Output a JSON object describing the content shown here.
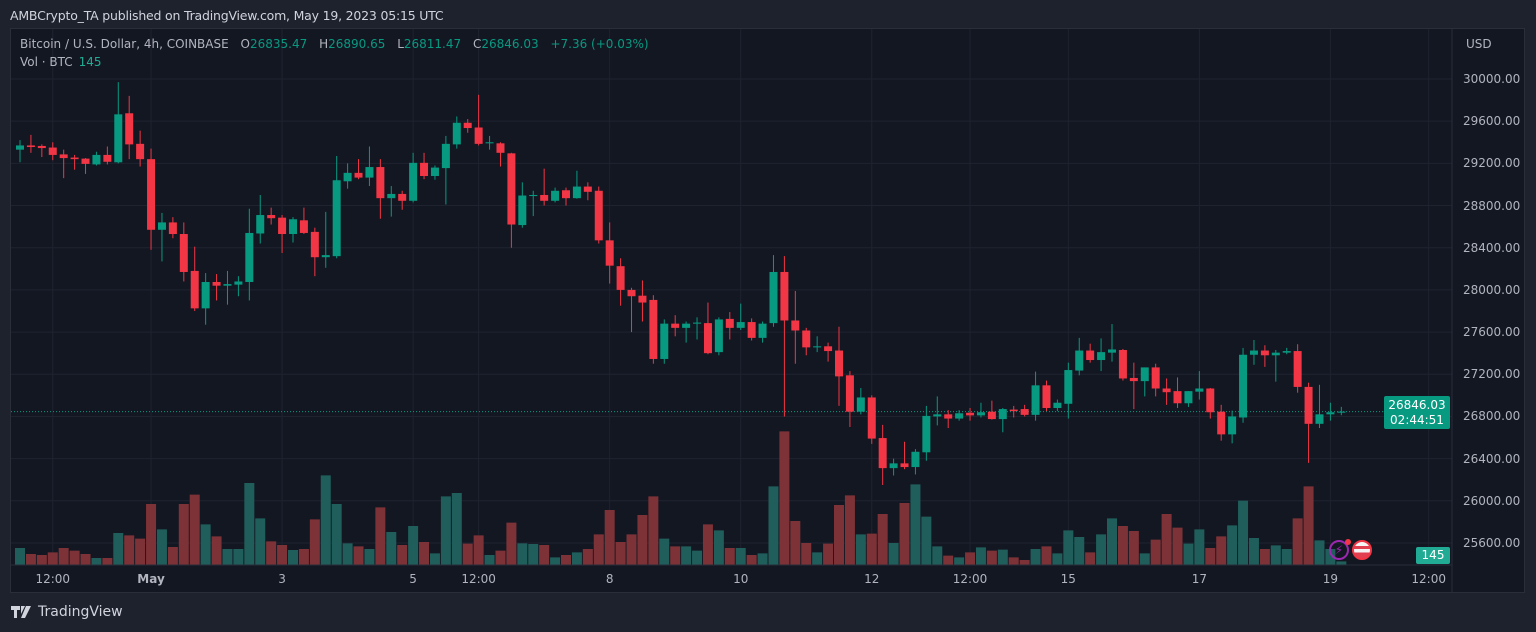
{
  "publisher_line": "AMBCrypto_TA published on TradingView.com, May 19, 2023 05:15 UTC",
  "legend": {
    "symbol": "Bitcoin / U.S. Dollar, 4h, COINBASE",
    "open_label": "O",
    "open": "26835.47",
    "high_label": "H",
    "high": "26890.65",
    "low_label": "L",
    "low": "26811.47",
    "close_label": "C",
    "close": "26846.03",
    "change": "+7.36 (+0.03%)",
    "vol_label": "Vol · BTC",
    "vol_value": "145"
  },
  "price_axis": {
    "currency": "USD",
    "current_price": "26846.03",
    "countdown": "02:44:51",
    "current_volume": "145"
  },
  "footer": {
    "brand": "TradingView"
  },
  "colors": {
    "up": "#089981",
    "down": "#f23645",
    "vol_up": "#1f5e5b",
    "vol_down": "#7c3236",
    "grid": "#1f2330",
    "background": "#131722"
  },
  "chart_data": {
    "type": "candlestick",
    "title": "Bitcoin / U.S. Dollar, 4h, COINBASE",
    "ylabel": "USD",
    "ylim": [
      25450,
      30250
    ],
    "yticks": [
      "30000.00",
      "29600.00",
      "29200.00",
      "28800.00",
      "28400.00",
      "28000.00",
      "27600.00",
      "27200.00",
      "26800.00",
      "26400.00",
      "26000.00",
      "25600.00"
    ],
    "xticks": [
      {
        "label": "12:00",
        "candle_index": 3
      },
      {
        "label": "May",
        "candle_index": 12,
        "bold": true
      },
      {
        "label": "3",
        "candle_index": 24
      },
      {
        "label": "5",
        "candle_index": 36
      },
      {
        "label": "12:00",
        "candle_index": 42
      },
      {
        "label": "8",
        "candle_index": 54
      },
      {
        "label": "10",
        "candle_index": 66
      },
      {
        "label": "12",
        "candle_index": 78
      },
      {
        "label": "12:00",
        "candle_index": 87
      },
      {
        "label": "15",
        "candle_index": 96
      },
      {
        "label": "17",
        "candle_index": 108
      },
      {
        "label": "19",
        "candle_index": 120
      },
      {
        "label": "12:00",
        "candle_index": 129
      }
    ],
    "candle_fields": [
      "open",
      "high",
      "low",
      "close",
      "volume_btc"
    ],
    "candles": [
      [
        29330,
        29420,
        29210,
        29370,
        680
      ],
      [
        29370,
        29470,
        29300,
        29355,
        440
      ],
      [
        29365,
        29380,
        29260,
        29345,
        400
      ],
      [
        29350,
        29400,
        29230,
        29280,
        505
      ],
      [
        29285,
        29330,
        29060,
        29250,
        680
      ],
      [
        29255,
        29280,
        29140,
        29240,
        575
      ],
      [
        29245,
        29250,
        29100,
        29195,
        440
      ],
      [
        29190,
        29310,
        29180,
        29280,
        280
      ],
      [
        29280,
        29360,
        29190,
        29215,
        280
      ],
      [
        29210,
        29970,
        29200,
        29665,
        1280
      ],
      [
        29675,
        29840,
        29240,
        29380,
        1185
      ],
      [
        29385,
        29510,
        29170,
        29240,
        1055
      ],
      [
        29240,
        29340,
        28380,
        28570,
        2440
      ],
      [
        28570,
        28730,
        28270,
        28640,
        1425
      ],
      [
        28640,
        28690,
        28490,
        28530,
        720
      ],
      [
        28530,
        28640,
        28080,
        28170,
        2440
      ],
      [
        28180,
        28410,
        27800,
        27825,
        2815
      ],
      [
        27825,
        28160,
        27670,
        28075,
        1625
      ],
      [
        28075,
        28150,
        27900,
        28040,
        1145
      ],
      [
        28040,
        28180,
        27860,
        28055,
        640
      ],
      [
        28050,
        28130,
        27940,
        28080,
        640
      ],
      [
        28075,
        28770,
        27900,
        28540,
        3280
      ],
      [
        28535,
        28900,
        28440,
        28710,
        1865
      ],
      [
        28710,
        28780,
        28620,
        28680,
        945
      ],
      [
        28685,
        28710,
        28350,
        28530,
        800
      ],
      [
        28530,
        28690,
        28450,
        28670,
        600
      ],
      [
        28660,
        28780,
        28530,
        28540,
        640
      ],
      [
        28550,
        28590,
        28130,
        28310,
        1825
      ],
      [
        28310,
        28740,
        28210,
        28330,
        3585
      ],
      [
        28320,
        29270,
        28300,
        29040,
        2440
      ],
      [
        29030,
        29200,
        28960,
        29110,
        865
      ],
      [
        29110,
        29240,
        29050,
        29065,
        745
      ],
      [
        29065,
        29360,
        28985,
        29165,
        640
      ],
      [
        29165,
        29240,
        28675,
        28870,
        2305
      ],
      [
        28870,
        28985,
        28695,
        28910,
        1320
      ],
      [
        28910,
        28940,
        28760,
        28845,
        800
      ],
      [
        28845,
        29300,
        28830,
        29205,
        1560
      ],
      [
        29205,
        29300,
        29050,
        29080,
        920
      ],
      [
        29080,
        29180,
        29045,
        29160,
        465
      ],
      [
        29155,
        29460,
        28810,
        29385,
        2745
      ],
      [
        29380,
        29645,
        29340,
        29585,
        2880
      ],
      [
        29585,
        29620,
        29490,
        29535,
        855
      ],
      [
        29540,
        29850,
        29370,
        29385,
        1185
      ],
      [
        29390,
        29460,
        29330,
        29400,
        400
      ],
      [
        29390,
        29400,
        29170,
        29300,
        575
      ],
      [
        29295,
        29300,
        28400,
        28620,
        1695
      ],
      [
        28615,
        29020,
        28590,
        28895,
        865
      ],
      [
        28890,
        28940,
        28700,
        28900,
        840
      ],
      [
        28900,
        29150,
        28800,
        28845,
        800
      ],
      [
        28845,
        28970,
        28830,
        28940,
        305
      ],
      [
        28945,
        28970,
        28800,
        28870,
        400
      ],
      [
        28870,
        29130,
        28865,
        28980,
        505
      ],
      [
        28980,
        29020,
        28850,
        28930,
        640
      ],
      [
        28940,
        28980,
        28440,
        28470,
        1225
      ],
      [
        28470,
        28640,
        28060,
        28230,
        2200
      ],
      [
        28225,
        28300,
        27850,
        28000,
        920
      ],
      [
        28000,
        28020,
        27600,
        27940,
        1225
      ],
      [
        27945,
        28090,
        27700,
        27880,
        2000
      ],
      [
        27905,
        27950,
        27300,
        27345,
        2745
      ],
      [
        27345,
        27720,
        27300,
        27680,
        1055
      ],
      [
        27680,
        27760,
        27560,
        27640,
        745
      ],
      [
        27640,
        27700,
        27500,
        27680,
        745
      ],
      [
        27680,
        27740,
        27530,
        27690,
        575
      ],
      [
        27685,
        27880,
        27390,
        27400,
        1625
      ],
      [
        27410,
        27740,
        27380,
        27720,
        1385
      ],
      [
        27725,
        27790,
        27530,
        27640,
        680
      ],
      [
        27640,
        27870,
        27620,
        27695,
        680
      ],
      [
        27695,
        27730,
        27520,
        27545,
        400
      ],
      [
        27545,
        27700,
        27500,
        27680,
        465
      ],
      [
        27685,
        28330,
        27650,
        28170,
        3145
      ],
      [
        28170,
        28320,
        26800,
        27710,
        5345
      ],
      [
        27710,
        27990,
        27300,
        27615,
        1760
      ],
      [
        27615,
        27640,
        27380,
        27455,
        880
      ],
      [
        27455,
        27560,
        27410,
        27465,
        505
      ],
      [
        27465,
        27500,
        27320,
        27420,
        855
      ],
      [
        27425,
        27650,
        26900,
        27180,
        2400
      ],
      [
        27190,
        27230,
        26700,
        26845,
        2785
      ],
      [
        26845,
        27070,
        26820,
        26980,
        1225
      ],
      [
        26980,
        27000,
        26540,
        26590,
        1255
      ],
      [
        26595,
        26720,
        26150,
        26310,
        2040
      ],
      [
        26310,
        26400,
        26240,
        26355,
        880
      ],
      [
        26355,
        26560,
        26300,
        26320,
        2480
      ],
      [
        26320,
        26490,
        26250,
        26465,
        3225
      ],
      [
        26460,
        26900,
        26380,
        26805,
        1935
      ],
      [
        26800,
        26990,
        26715,
        26820,
        745
      ],
      [
        26820,
        26860,
        26690,
        26780,
        375
      ],
      [
        26780,
        26860,
        26760,
        26830,
        305
      ],
      [
        26835,
        26880,
        26760,
        26810,
        505
      ],
      [
        26810,
        26930,
        26790,
        26840,
        705
      ],
      [
        26845,
        26950,
        26770,
        26775,
        575
      ],
      [
        26775,
        26880,
        26650,
        26870,
        615
      ],
      [
        26865,
        26900,
        26790,
        26850,
        305
      ],
      [
        26870,
        26910,
        26800,
        26815,
        200
      ],
      [
        26815,
        27225,
        26760,
        27095,
        640
      ],
      [
        27095,
        27140,
        26850,
        26880,
        745
      ],
      [
        26880,
        26960,
        26850,
        26930,
        465
      ],
      [
        26920,
        27310,
        26780,
        27240,
        1385
      ],
      [
        27235,
        27545,
        27190,
        27425,
        1120
      ],
      [
        27425,
        27490,
        27310,
        27335,
        505
      ],
      [
        27335,
        27540,
        27230,
        27410,
        1225
      ],
      [
        27405,
        27675,
        27320,
        27435,
        1865
      ],
      [
        27430,
        27440,
        27140,
        27160,
        1560
      ],
      [
        27165,
        27310,
        26870,
        27135,
        1360
      ],
      [
        27135,
        27265,
        26990,
        27265,
        465
      ],
      [
        27265,
        27300,
        26990,
        27065,
        1015
      ],
      [
        27065,
        27160,
        26910,
        27030,
        2040
      ],
      [
        27040,
        27170,
        26880,
        26925,
        1495
      ],
      [
        26925,
        27040,
        26890,
        27040,
        855
      ],
      [
        27035,
        27230,
        26960,
        27065,
        1425
      ],
      [
        27065,
        27070,
        26780,
        26840,
        680
      ],
      [
        26845,
        26910,
        26570,
        26630,
        1145
      ],
      [
        26630,
        26855,
        26545,
        26800,
        1585
      ],
      [
        26790,
        27450,
        26740,
        27385,
        2575
      ],
      [
        27385,
        27525,
        27290,
        27425,
        1080
      ],
      [
        27425,
        27475,
        27270,
        27380,
        640
      ],
      [
        27380,
        27430,
        27130,
        27405,
        785
      ],
      [
        27405,
        27450,
        27390,
        27420,
        640
      ],
      [
        27420,
        27485,
        27025,
        27080,
        1865
      ],
      [
        27080,
        27120,
        26360,
        26730,
        3145
      ],
      [
        26730,
        27100,
        26690,
        26820,
        985
      ],
      [
        26820,
        26930,
        26760,
        26840,
        640
      ],
      [
        26835.47,
        26890.65,
        26811.47,
        26846.03,
        145
      ]
    ]
  }
}
